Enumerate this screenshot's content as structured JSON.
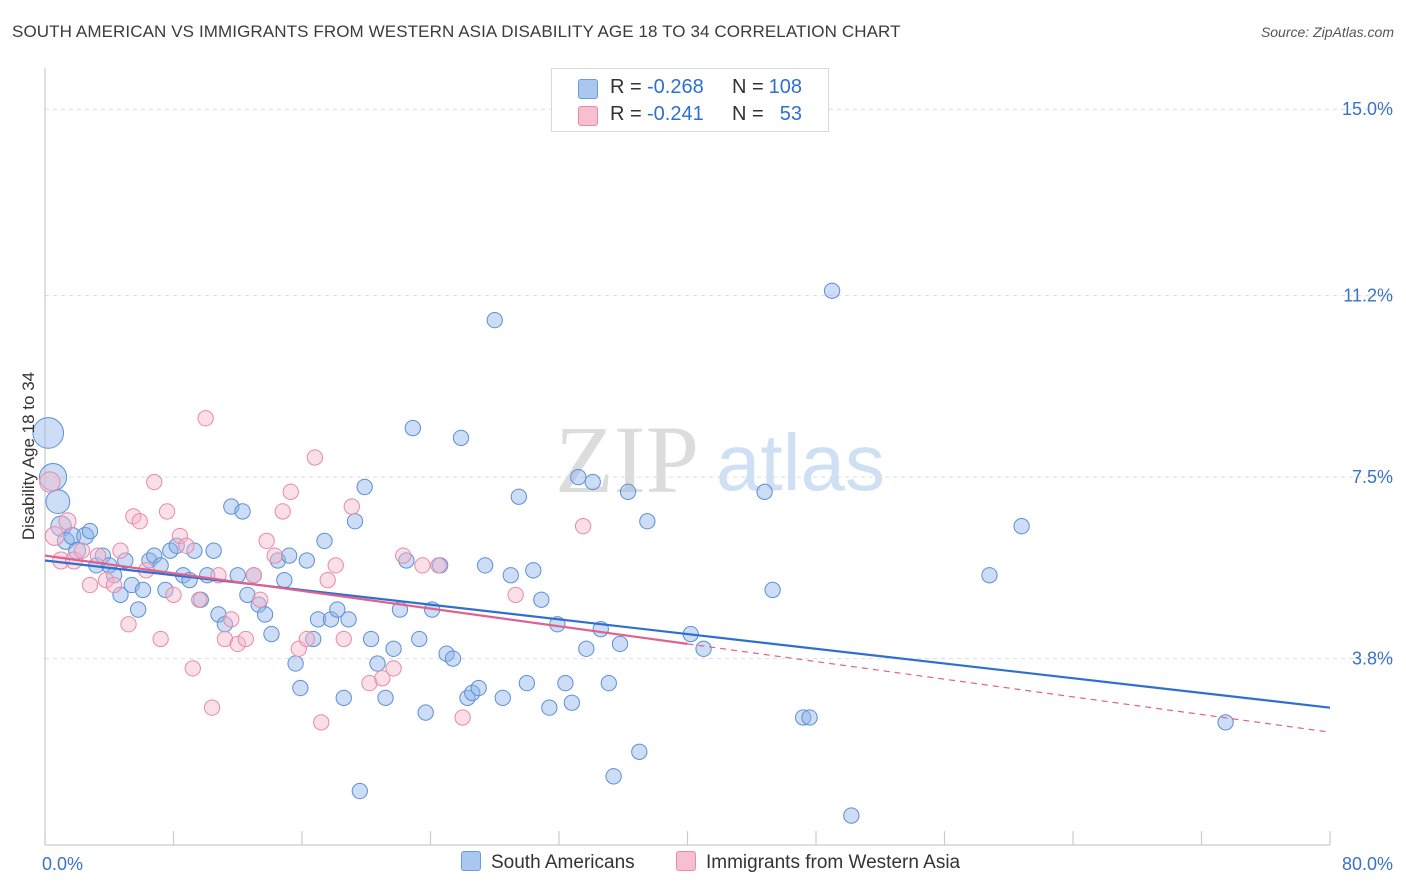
{
  "title": "SOUTH AMERICAN VS IMMIGRANTS FROM WESTERN ASIA DISABILITY AGE 18 TO 34 CORRELATION CHART",
  "source": "Source: ZipAtlas.com",
  "watermark": {
    "zip": "ZIP",
    "atlas": "atlas"
  },
  "legend": {
    "rows": [
      {
        "r_label": "R =",
        "r_value": "-0.268",
        "n_label": "N =",
        "n_value": "108",
        "color": "#aac7ef",
        "border": "#6a9be0"
      },
      {
        "r_label": "R =",
        "r_value": "-0.241",
        "n_label": "N =",
        "n_value": "53",
        "color": "#f7bfd0",
        "border": "#e88aa8"
      }
    ]
  },
  "bottom_legend": {
    "south": "South Americans",
    "western": "Immigrants from Western Asia"
  },
  "chart_data": {
    "type": "scatter",
    "ylabel": "Disability Age 18 to 34",
    "xlim": [
      0,
      80
    ],
    "ylim": [
      0,
      15.8
    ],
    "x_tick_labels": [
      "0.0%",
      "80.0%"
    ],
    "y_ticks": [
      3.8,
      7.5,
      11.2,
      15.0
    ],
    "y_tick_labels": [
      "3.8%",
      "7.5%",
      "11.2%",
      "15.0%"
    ],
    "grid": "horizontal dashed",
    "series": [
      {
        "name": "South Americans",
        "color": "#8fb4e8",
        "edge": "#5a8fd8",
        "trend": {
          "x0": 0,
          "y0": 5.8,
          "x1": 80,
          "y1": 2.8,
          "color": "#2e6fd0"
        },
        "points": [
          [
            0.2,
            8.4,
            1.8
          ],
          [
            0.5,
            7.5,
            1.6
          ],
          [
            0.8,
            7.0,
            1.4
          ],
          [
            1.0,
            6.5,
            1.2
          ],
          [
            1.3,
            6.2,
            1.0
          ],
          [
            1.7,
            6.3,
            1.0
          ],
          [
            2.0,
            6.0,
            1.0
          ],
          [
            2.5,
            6.3,
            1.0
          ],
          [
            2.8,
            6.4,
            0.9
          ],
          [
            3.2,
            5.7,
            0.9
          ],
          [
            3.6,
            5.9,
            0.9
          ],
          [
            4.0,
            5.7,
            0.9
          ],
          [
            4.3,
            5.5,
            0.9
          ],
          [
            4.7,
            5.1,
            0.9
          ],
          [
            5.0,
            5.8,
            0.9
          ],
          [
            5.4,
            5.3,
            0.9
          ],
          [
            5.8,
            4.8,
            0.9
          ],
          [
            6.1,
            5.2,
            0.9
          ],
          [
            6.5,
            5.8,
            0.9
          ],
          [
            6.8,
            5.9,
            0.9
          ],
          [
            7.2,
            5.7,
            0.9
          ],
          [
            7.5,
            5.2,
            0.9
          ],
          [
            7.8,
            6.0,
            0.9
          ],
          [
            8.2,
            6.1,
            0.9
          ],
          [
            8.6,
            5.5,
            0.9
          ],
          [
            9.0,
            5.4,
            0.9
          ],
          [
            9.3,
            6.0,
            0.9
          ],
          [
            9.7,
            5.0,
            0.9
          ],
          [
            10.1,
            5.5,
            0.9
          ],
          [
            10.5,
            6.0,
            0.9
          ],
          [
            10.8,
            4.7,
            0.9
          ],
          [
            11.2,
            4.5,
            0.9
          ],
          [
            11.6,
            6.9,
            0.9
          ],
          [
            12.0,
            5.5,
            0.9
          ],
          [
            12.3,
            6.8,
            0.9
          ],
          [
            12.6,
            5.1,
            0.9
          ],
          [
            13.0,
            5.5,
            0.9
          ],
          [
            13.3,
            4.9,
            0.9
          ],
          [
            13.7,
            4.7,
            0.9
          ],
          [
            14.1,
            4.3,
            0.9
          ],
          [
            14.5,
            5.8,
            0.9
          ],
          [
            14.9,
            5.4,
            0.9
          ],
          [
            15.2,
            5.9,
            0.9
          ],
          [
            15.6,
            3.7,
            0.9
          ],
          [
            15.9,
            3.2,
            0.9
          ],
          [
            16.3,
            5.8,
            0.9
          ],
          [
            16.7,
            4.2,
            0.9
          ],
          [
            17.0,
            4.6,
            0.9
          ],
          [
            17.4,
            6.2,
            0.9
          ],
          [
            17.8,
            4.6,
            0.9
          ],
          [
            18.2,
            4.8,
            0.9
          ],
          [
            18.6,
            3.0,
            0.9
          ],
          [
            18.9,
            4.6,
            0.9
          ],
          [
            19.3,
            6.6,
            0.9
          ],
          [
            19.6,
            1.1,
            0.9
          ],
          [
            19.9,
            7.3,
            0.9
          ],
          [
            20.3,
            4.2,
            0.9
          ],
          [
            20.7,
            3.7,
            0.9
          ],
          [
            21.2,
            3.0,
            0.9
          ],
          [
            21.7,
            4.0,
            0.9
          ],
          [
            22.1,
            4.8,
            0.9
          ],
          [
            22.5,
            5.8,
            0.9
          ],
          [
            22.9,
            8.5,
            0.9
          ],
          [
            23.3,
            4.2,
            0.9
          ],
          [
            23.7,
            2.7,
            0.9
          ],
          [
            24.1,
            4.8,
            0.9
          ],
          [
            24.6,
            5.7,
            0.9
          ],
          [
            25.0,
            3.9,
            0.9
          ],
          [
            25.4,
            3.8,
            0.9
          ],
          [
            25.9,
            8.3,
            0.9
          ],
          [
            26.3,
            3.0,
            0.9
          ],
          [
            26.6,
            3.1,
            0.9
          ],
          [
            27.0,
            3.2,
            0.9
          ],
          [
            27.4,
            5.7,
            0.9
          ],
          [
            28.0,
            10.7,
            0.9
          ],
          [
            28.5,
            3.0,
            0.9
          ],
          [
            29.0,
            5.5,
            0.9
          ],
          [
            29.5,
            7.1,
            0.9
          ],
          [
            30.0,
            3.3,
            0.9
          ],
          [
            30.4,
            5.6,
            0.9
          ],
          [
            30.9,
            5.0,
            0.9
          ],
          [
            31.4,
            2.8,
            0.9
          ],
          [
            31.9,
            4.5,
            0.9
          ],
          [
            32.4,
            3.3,
            0.9
          ],
          [
            32.8,
            2.9,
            0.9
          ],
          [
            33.2,
            7.5,
            0.9
          ],
          [
            33.7,
            4.0,
            0.9
          ],
          [
            34.1,
            7.4,
            0.9
          ],
          [
            34.6,
            4.4,
            0.9
          ],
          [
            35.1,
            3.3,
            0.9
          ],
          [
            35.4,
            1.4,
            0.9
          ],
          [
            35.8,
            4.1,
            0.9
          ],
          [
            36.3,
            7.2,
            0.9
          ],
          [
            37.0,
            1.9,
            0.9
          ],
          [
            37.5,
            6.6,
            0.9
          ],
          [
            40.2,
            4.3,
            0.9
          ],
          [
            41.0,
            4.0,
            0.9
          ],
          [
            44.8,
            7.2,
            0.9
          ],
          [
            45.3,
            5.2,
            0.9
          ],
          [
            47.2,
            2.6,
            0.9
          ],
          [
            47.6,
            2.6,
            0.9
          ],
          [
            49.0,
            11.3,
            0.9
          ],
          [
            50.2,
            0.6,
            0.9
          ],
          [
            58.8,
            5.5,
            0.9
          ],
          [
            60.8,
            6.5,
            0.9
          ],
          [
            73.5,
            2.5,
            0.9
          ]
        ]
      },
      {
        "name": "Immigrants from Western Asia",
        "color": "#f5b8cb",
        "edge": "#e68aa8",
        "trend": {
          "x0": 0,
          "y0": 5.9,
          "x1": 40,
          "y1": 4.1,
          "color": "#e0608e"
        },
        "trend_ext": {
          "x0": 40,
          "y0": 4.1,
          "x1": 80,
          "y1": 2.3
        },
        "points": [
          [
            0.3,
            7.4,
            1.2
          ],
          [
            0.6,
            6.3,
            1.1
          ],
          [
            1.0,
            5.8,
            1.0
          ],
          [
            1.4,
            6.6,
            1.0
          ],
          [
            1.8,
            5.8,
            1.0
          ],
          [
            2.3,
            6.0,
            0.9
          ],
          [
            2.8,
            5.3,
            0.9
          ],
          [
            3.3,
            5.9,
            0.9
          ],
          [
            3.8,
            5.4,
            0.9
          ],
          [
            4.3,
            5.3,
            0.9
          ],
          [
            4.7,
            6.0,
            0.9
          ],
          [
            5.2,
            4.5,
            0.9
          ],
          [
            5.5,
            6.7,
            0.9
          ],
          [
            5.9,
            6.6,
            0.9
          ],
          [
            6.3,
            5.6,
            0.9
          ],
          [
            6.8,
            7.4,
            0.9
          ],
          [
            7.2,
            4.2,
            0.9
          ],
          [
            7.6,
            6.8,
            0.9
          ],
          [
            8.0,
            5.1,
            0.9
          ],
          [
            8.4,
            6.3,
            0.9
          ],
          [
            8.8,
            6.1,
            0.9
          ],
          [
            9.2,
            3.6,
            0.9
          ],
          [
            9.6,
            5.0,
            0.9
          ],
          [
            10.0,
            8.7,
            0.9
          ],
          [
            10.4,
            2.8,
            0.9
          ],
          [
            10.8,
            5.5,
            0.9
          ],
          [
            11.2,
            4.2,
            0.9
          ],
          [
            11.6,
            4.6,
            0.9
          ],
          [
            12.0,
            4.1,
            0.9
          ],
          [
            12.5,
            4.2,
            0.9
          ],
          [
            13.0,
            5.5,
            0.9
          ],
          [
            13.4,
            5.0,
            0.9
          ],
          [
            13.8,
            6.2,
            0.9
          ],
          [
            14.3,
            5.9,
            0.9
          ],
          [
            14.8,
            6.8,
            0.9
          ],
          [
            15.3,
            7.2,
            0.9
          ],
          [
            15.8,
            4.0,
            0.9
          ],
          [
            16.3,
            4.2,
            0.9
          ],
          [
            16.8,
            7.9,
            0.9
          ],
          [
            17.2,
            2.5,
            0.9
          ],
          [
            17.6,
            5.4,
            0.9
          ],
          [
            18.1,
            5.7,
            0.9
          ],
          [
            18.6,
            4.2,
            0.9
          ],
          [
            19.1,
            6.9,
            0.9
          ],
          [
            20.2,
            3.3,
            0.9
          ],
          [
            21.0,
            3.4,
            0.9
          ],
          [
            21.7,
            3.6,
            0.9
          ],
          [
            22.3,
            5.9,
            0.9
          ],
          [
            23.5,
            5.7,
            0.9
          ],
          [
            24.5,
            5.7,
            0.9
          ],
          [
            26.0,
            2.6,
            0.9
          ],
          [
            29.3,
            5.1,
            0.9
          ],
          [
            33.5,
            6.5,
            0.9
          ]
        ]
      }
    ]
  }
}
